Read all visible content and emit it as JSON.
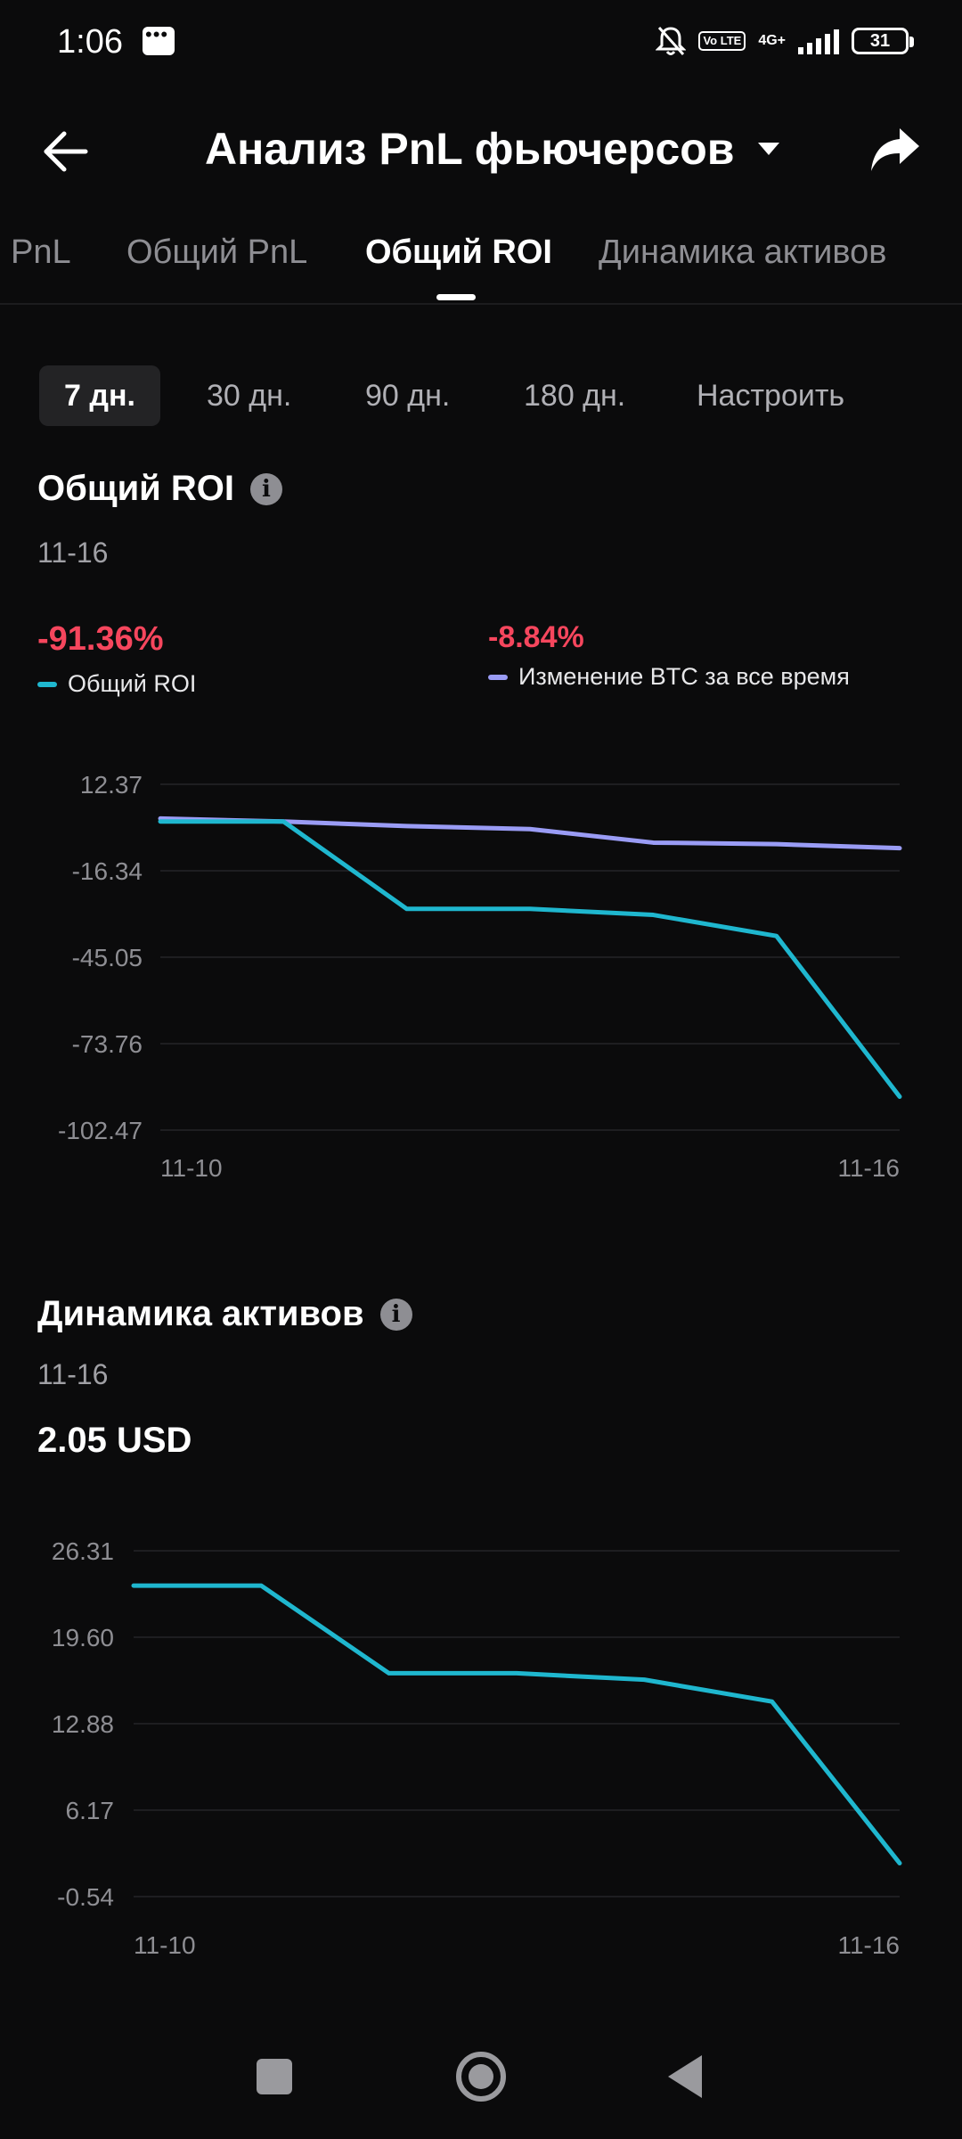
{
  "status": {
    "time": "1:06",
    "network": "4G+",
    "volte": "Vo LTE",
    "battery": "31"
  },
  "header": {
    "title": "Анализ PnL фьючерсов"
  },
  "tabs": [
    "PnL",
    "Общий PnL",
    "Общий ROI",
    "Динамика активов"
  ],
  "active_tab": "Общий ROI",
  "periods": [
    "7 дн.",
    "30 дн.",
    "90 дн.",
    "180 дн.",
    "Настроить"
  ],
  "active_period": "7 дн.",
  "roi": {
    "title": "Общий ROI",
    "date": "11-16",
    "value": "-91.36%",
    "legend": "Общий ROI",
    "btc_value": "-8.84%",
    "btc_legend": "Изменение BTC за все время"
  },
  "assets": {
    "title": "Динамика активов",
    "date": "11-16",
    "value": "2.05 USD"
  },
  "colors": {
    "roi_line": "#1fb7cf",
    "btc_line": "#9a9cf5",
    "negative": "#f6465d"
  },
  "chart_data": [
    {
      "type": "line",
      "title": "Общий ROI",
      "x": [
        "11-10",
        "11-11",
        "11-12",
        "11-13",
        "11-14",
        "11-15",
        "11-16"
      ],
      "x_tick_labels": [
        "11-10",
        "11-16"
      ],
      "y_ticks": [
        "12.37",
        "-16.34",
        "-45.05",
        "-73.76",
        "-102.47"
      ],
      "ylim": [
        -102.47,
        12.37
      ],
      "grid": true,
      "series": [
        {
          "name": "Общий ROI",
          "color": "#1fb7cf",
          "values": [
            0,
            0,
            -29,
            -29,
            -31,
            -38,
            -91.36
          ]
        },
        {
          "name": "Изменение BTC за все время",
          "color": "#9a9cf5",
          "values": [
            1,
            0,
            -1.5,
            -2.5,
            -7,
            -7.5,
            -8.84
          ]
        }
      ]
    },
    {
      "type": "line",
      "title": "Динамика активов",
      "x": [
        "11-10",
        "11-11",
        "11-12",
        "11-13",
        "11-14",
        "11-15",
        "11-16"
      ],
      "x_tick_labels": [
        "11-10",
        "11-16"
      ],
      "y_ticks": [
        "26.31",
        "19.60",
        "12.88",
        "6.17",
        "-0.54"
      ],
      "ylim": [
        -0.54,
        26.31
      ],
      "grid": true,
      "series": [
        {
          "color": "#1fb7cf",
          "values": [
            23.6,
            23.6,
            16.8,
            16.8,
            16.3,
            14.6,
            2.05
          ]
        }
      ]
    }
  ]
}
